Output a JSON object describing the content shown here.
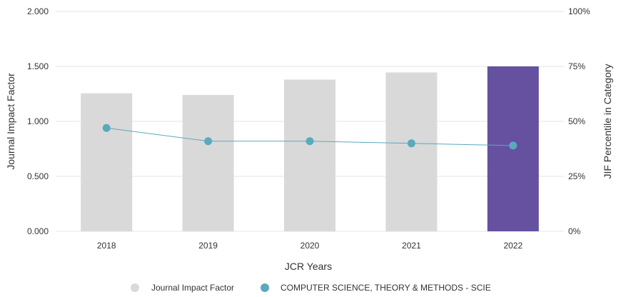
{
  "chart_data": {
    "type": "bar",
    "xlabel": "JCR Years",
    "ylabel": "Journal Impact Factor",
    "y2label": "JIF Percentile in Category",
    "categories": [
      "2018",
      "2019",
      "2020",
      "2021",
      "2022"
    ],
    "ylim": [
      0,
      2
    ],
    "yticks": [
      "0.000",
      "0.500",
      "1.000",
      "1.500",
      "2.000"
    ],
    "ytick_values": [
      0,
      0.5,
      1,
      1.5,
      2
    ],
    "y2lim": [
      0,
      100
    ],
    "y2ticks": [
      "0%",
      "25%",
      "50%",
      "75%",
      "100%"
    ],
    "y2tick_values": [
      0,
      25,
      50,
      75,
      100
    ],
    "series": [
      {
        "name": "Journal Impact Factor",
        "type": "bar",
        "axis": "left",
        "values": [
          1.255,
          1.24,
          1.38,
          1.445,
          1.5
        ],
        "highlight_index": 4
      },
      {
        "name": "COMPUTER SCIENCE, THEORY & METHODS - SCIE",
        "type": "line",
        "axis": "right",
        "values": [
          47,
          41,
          41,
          40,
          39
        ]
      }
    ],
    "legend": [
      "Journal Impact Factor",
      "COMPUTER SCIENCE, THEORY & METHODS - SCIE"
    ],
    "colors": {
      "bar": "#d9d9d9",
      "bar_highlight": "#6551a0",
      "line": "#5aa9bd",
      "grid": "#e6e6e6"
    }
  }
}
